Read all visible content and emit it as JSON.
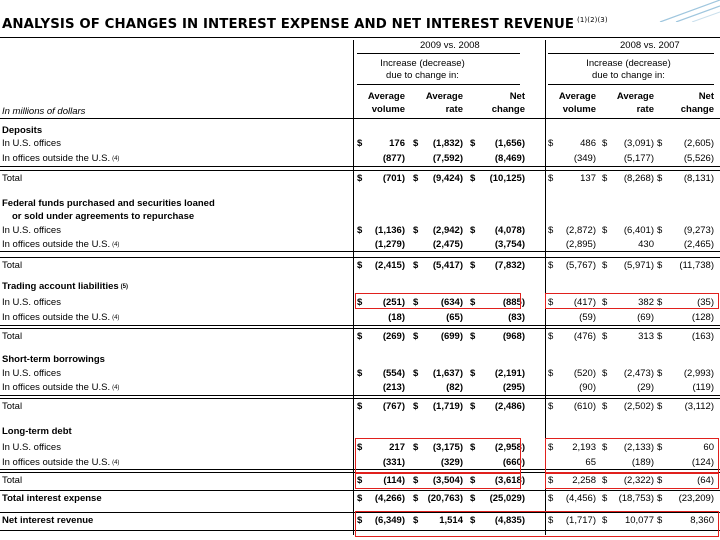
{
  "title": "ANALYSIS OF CHANGES IN INTEREST EXPENSE AND NET INTEREST REVENUE",
  "title_footnote": "(1)(2)(3)",
  "periods": [
    "2009 vs. 2008",
    "2008 vs. 2007"
  ],
  "subheader": "Increase (decrease) due to change in:",
  "subheader_lines": [
    "Increase (decrease)",
    "due to change in:"
  ],
  "units_label": "In millions of dollars",
  "column_headers": [
    [
      "Average",
      "volume"
    ],
    [
      "Average",
      "rate"
    ],
    [
      "Net",
      "change"
    ],
    [
      "Average",
      "volume"
    ],
    [
      "Average",
      "rate"
    ],
    [
      "Net",
      "change"
    ]
  ],
  "rows": [
    {
      "label": "Deposits",
      "type": "section"
    },
    {
      "label": "In U.S. offices",
      "type": "row",
      "cells": [
        [
          "$",
          "176"
        ],
        [
          "$",
          "(1,832)"
        ],
        [
          "$",
          "(1,656)"
        ],
        [
          "$",
          "486"
        ],
        [
          "$",
          "(3,091)"
        ],
        [
          "$",
          "(2,605)"
        ]
      ]
    },
    {
      "label": "In offices outside the U.S.",
      "fn": "(4)",
      "type": "row",
      "cells": [
        [
          "",
          "(877)"
        ],
        [
          "",
          "(7,592)"
        ],
        [
          "",
          "(8,469)"
        ],
        [
          "",
          "(349)"
        ],
        [
          "",
          "(5,177)"
        ],
        [
          "",
          "(5,526)"
        ]
      ]
    },
    {
      "label": "Total",
      "type": "total",
      "cells": [
        [
          "$",
          "(701)"
        ],
        [
          "$",
          "(9,424)"
        ],
        [
          "$",
          "(10,125)"
        ],
        [
          "$",
          "137"
        ],
        [
          "$",
          "(8,268)"
        ],
        [
          "$",
          "(8,131)"
        ]
      ]
    },
    {
      "label": "Federal funds purchased and securities loaned",
      "type": "section"
    },
    {
      "label": "or sold under agreements to repurchase",
      "type": "section-indent"
    },
    {
      "label": "In U.S. offices",
      "type": "row",
      "cells": [
        [
          "$",
          "(1,136)"
        ],
        [
          "$",
          "(2,942)"
        ],
        [
          "$",
          "(4,078)"
        ],
        [
          "$",
          "(2,872)"
        ],
        [
          "$",
          "(6,401)"
        ],
        [
          "$",
          "(9,273)"
        ]
      ]
    },
    {
      "label": "In offices outside the U.S.",
      "fn": "(4)",
      "type": "row",
      "cells": [
        [
          "",
          "(1,279)"
        ],
        [
          "",
          "(2,475)"
        ],
        [
          "",
          "(3,754)"
        ],
        [
          "",
          "(2,895)"
        ],
        [
          "",
          "430"
        ],
        [
          "",
          "(2,465)"
        ]
      ]
    },
    {
      "label": "Total",
      "type": "total",
      "cells": [
        [
          "$",
          "(2,415)"
        ],
        [
          "$",
          "(5,417)"
        ],
        [
          "$",
          "(7,832)"
        ],
        [
          "$",
          "(5,767)"
        ],
        [
          "$",
          "(5,971)"
        ],
        [
          "$",
          "(11,738)"
        ]
      ]
    },
    {
      "label": "Trading account liabilities",
      "fn": "(5)",
      "type": "section"
    },
    {
      "label": "In U.S. offices",
      "type": "row",
      "cells": [
        [
          "$",
          "(251)"
        ],
        [
          "$",
          "(634)"
        ],
        [
          "$",
          "(885)"
        ],
        [
          "$",
          "(417)"
        ],
        [
          "$",
          "382"
        ],
        [
          "$",
          "(35)"
        ]
      ]
    },
    {
      "label": "In offices outside the U.S.",
      "fn": "(4)",
      "type": "row",
      "cells": [
        [
          "",
          "(18)"
        ],
        [
          "",
          "(65)"
        ],
        [
          "",
          "(83)"
        ],
        [
          "",
          "(59)"
        ],
        [
          "",
          "(69)"
        ],
        [
          "",
          "(128)"
        ]
      ]
    },
    {
      "label": "Total",
      "type": "total",
      "cells": [
        [
          "$",
          "(269)"
        ],
        [
          "$",
          "(699)"
        ],
        [
          "$",
          "(968)"
        ],
        [
          "$",
          "(476)"
        ],
        [
          "$",
          "313"
        ],
        [
          "$",
          "(163)"
        ]
      ]
    },
    {
      "label": "Short-term borrowings",
      "type": "section"
    },
    {
      "label": "In U.S. offices",
      "type": "row",
      "cells": [
        [
          "$",
          "(554)"
        ],
        [
          "$",
          "(1,637)"
        ],
        [
          "$",
          "(2,191)"
        ],
        [
          "$",
          "(520)"
        ],
        [
          "$",
          "(2,473)"
        ],
        [
          "$",
          "(2,993)"
        ]
      ]
    },
    {
      "label": "In offices outside the U.S.",
      "fn": "(4)",
      "type": "row",
      "cells": [
        [
          "",
          "(213)"
        ],
        [
          "",
          "(82)"
        ],
        [
          "",
          "(295)"
        ],
        [
          "",
          "(90)"
        ],
        [
          "",
          "(29)"
        ],
        [
          "",
          "(119)"
        ]
      ]
    },
    {
      "label": "Total",
      "type": "total",
      "cells": [
        [
          "$",
          "(767)"
        ],
        [
          "$",
          "(1,719)"
        ],
        [
          "$",
          "(2,486)"
        ],
        [
          "$",
          "(610)"
        ],
        [
          "$",
          "(2,502)"
        ],
        [
          "$",
          "(3,112)"
        ]
      ]
    },
    {
      "label": "Long-term debt",
      "type": "section"
    },
    {
      "label": "In U.S. offices",
      "type": "row",
      "cells": [
        [
          "$",
          "217"
        ],
        [
          "$",
          "(3,175)"
        ],
        [
          "$",
          "(2,958)"
        ],
        [
          "$",
          "2,193"
        ],
        [
          "$",
          "(2,133)"
        ],
        [
          "$",
          "60"
        ]
      ]
    },
    {
      "label": "In offices outside the U.S.",
      "fn": "(4)",
      "type": "row",
      "cells": [
        [
          "",
          "(331)"
        ],
        [
          "",
          "(329)"
        ],
        [
          "",
          "(660)"
        ],
        [
          "",
          "65"
        ],
        [
          "",
          "(189)"
        ],
        [
          "",
          "(124)"
        ]
      ]
    },
    {
      "label": "Total",
      "type": "total",
      "cells": [
        [
          "$",
          "(114)"
        ],
        [
          "$",
          "(3,504)"
        ],
        [
          "$",
          "(3,618)"
        ],
        [
          "$",
          "2,258"
        ],
        [
          "$",
          "(2,322)"
        ],
        [
          "$",
          "(64)"
        ]
      ]
    },
    {
      "label": "Total interest expense",
      "type": "grand",
      "cells": [
        [
          "$",
          "(4,266)"
        ],
        [
          "$",
          "(20,763)"
        ],
        [
          "$",
          "(25,029)"
        ],
        [
          "$",
          "(4,456)"
        ],
        [
          "$",
          "(18,753)"
        ],
        [
          "$",
          "(23,209)"
        ]
      ]
    },
    {
      "label": "Net interest revenue",
      "type": "grand2",
      "cells": [
        [
          "$",
          "(6,349)"
        ],
        [
          "$",
          "1,514"
        ],
        [
          "$",
          "(4,835)"
        ],
        [
          "$",
          "(1,717)"
        ],
        [
          "$",
          "10,077"
        ],
        [
          "$",
          "8,360"
        ]
      ]
    }
  ],
  "highlight_color": "#e0201d",
  "accent_decoration_color": "#9fc6de"
}
